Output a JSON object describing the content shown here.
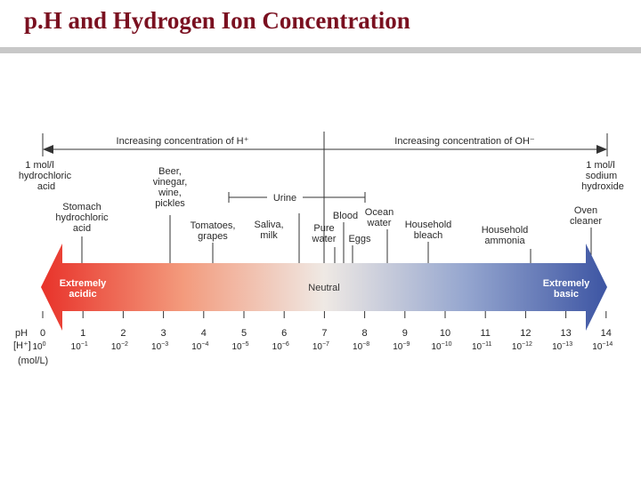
{
  "title": "p.H and Hydrogen Ion Concentration",
  "arrows": {
    "h_label": "Increasing concentration of H⁺",
    "oh_label": "Increasing concentration of OH⁻"
  },
  "bar": {
    "left_label": [
      "Extremely",
      "acidic"
    ],
    "center_label": "Neutral",
    "right_label": [
      "Extremely",
      "basic"
    ],
    "colors": [
      "#e8322a",
      "#f39a7c",
      "#efe9e4",
      "#95a6cf",
      "#3d55a3"
    ]
  },
  "ends": {
    "left": [
      "1 mol/l",
      "hydrochloric",
      "acid"
    ],
    "right": [
      "1 mol/l",
      "sodium",
      "hydroxide"
    ]
  },
  "examples": {
    "stomach": [
      "Stomach",
      "hydrochloric",
      "acid"
    ],
    "beer": [
      "Beer,",
      "vinegar,",
      "wine,",
      "pickles"
    ],
    "tomatoes": [
      "Tomatoes,",
      "grapes"
    ],
    "saliva": [
      "Saliva,",
      "milk"
    ],
    "pure_water": [
      "Pure",
      "water"
    ],
    "blood": "Blood",
    "eggs": "Eggs",
    "ocean": [
      "Ocean",
      "water"
    ],
    "bleach": [
      "Household",
      "bleach"
    ],
    "ammonia": [
      "Household",
      "ammonia"
    ],
    "oven": [
      "Oven",
      "cleaner"
    ],
    "urine": "Urine"
  },
  "axis": {
    "ph_label": "pH",
    "conc_label": "[H⁺]",
    "unit_label": "(mol/L)",
    "ph_values": [
      0,
      1,
      2,
      3,
      4,
      5,
      6,
      7,
      8,
      9,
      10,
      11,
      12,
      13,
      14
    ],
    "base": "10",
    "exponents": [
      "0",
      "−1",
      "−2",
      "−3",
      "−4",
      "−5",
      "−6",
      "−7",
      "−8",
      "−9",
      "−10",
      "−11",
      "−12",
      "−13",
      "−14"
    ]
  }
}
